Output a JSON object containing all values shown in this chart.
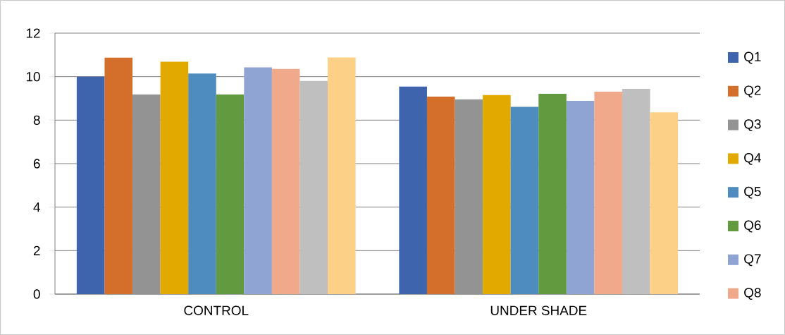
{
  "chart_data": {
    "type": "bar",
    "categories": [
      "CONTROL",
      "UNDER SHADE"
    ],
    "series": [
      {
        "name": "Q1",
        "color": "#3d64ad",
        "values": [
          10.0,
          9.54
        ]
      },
      {
        "name": "Q2",
        "color": "#d36f2b",
        "values": [
          10.87,
          9.08
        ]
      },
      {
        "name": "Q3",
        "color": "#939393",
        "values": [
          9.18,
          8.95
        ]
      },
      {
        "name": "Q4",
        "color": "#e2aa00",
        "values": [
          10.69,
          9.15
        ]
      },
      {
        "name": "Q5",
        "color": "#4e8bbf",
        "values": [
          10.14,
          8.61
        ]
      },
      {
        "name": "Q6",
        "color": "#629a3f",
        "values": [
          9.18,
          9.21
        ]
      },
      {
        "name": "Q7",
        "color": "#90a4d4",
        "values": [
          10.43,
          8.89
        ]
      },
      {
        "name": "Q8",
        "color": "#f0a98a",
        "values": [
          10.35,
          9.31
        ]
      },
      {
        "color": "#bfbfbf",
        "values": [
          9.8,
          9.44
        ]
      },
      {
        "color": "#fdd087",
        "values": [
          10.88,
          8.36
        ]
      }
    ],
    "ylim": [
      0,
      12
    ],
    "yticks": [
      0,
      2,
      4,
      6,
      8,
      10,
      12
    ],
    "grid": "y",
    "legend": "right"
  }
}
